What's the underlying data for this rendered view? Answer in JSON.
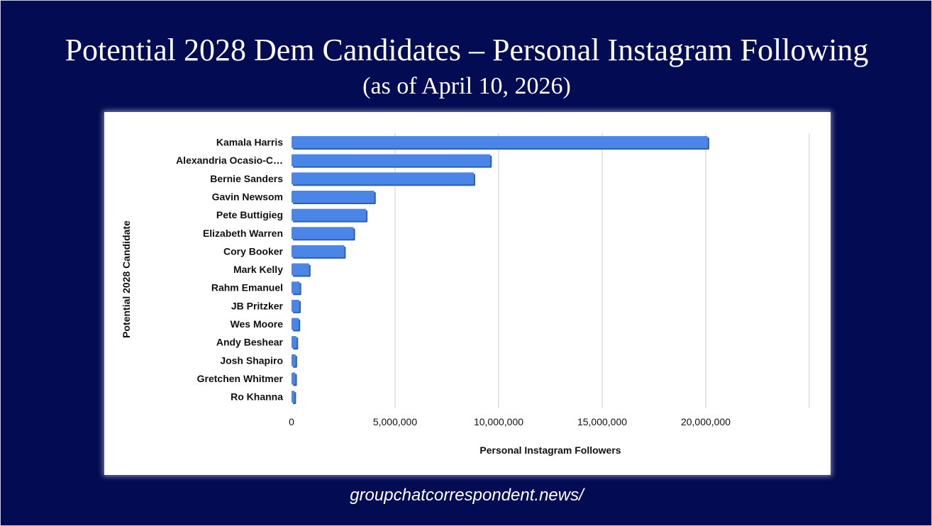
{
  "slide": {
    "title": "Potential 2028 Dem Candidates – Personal Instagram Following",
    "subtitle": "(as of April 10, 2026)",
    "footer": "groupchatcorrespondent.news/"
  },
  "colors": {
    "background": "#030b52",
    "bar": "#4a86e8",
    "bar_shadow": "#2f5fb3",
    "bar_side": "#5f95ea",
    "gridline": "#cccccc"
  },
  "chart_data": {
    "type": "bar",
    "orientation": "horizontal",
    "title": "",
    "xlabel": "Personal Instagram Followers",
    "ylabel": "Potential 2028 Candidate",
    "categories": [
      "Kamala Harris",
      "Alexandria Ocasio-C…",
      "Bernie Sanders",
      "Gavin Newsom",
      "Pete Buttigieg",
      "Elizabeth Warren",
      "Cory Booker",
      "Mark Kelly",
      "Rahm Emanuel",
      "JB Pritzker",
      "Wes Moore",
      "Andy Beshear",
      "Josh Shapiro",
      "Gretchen Whitmer",
      "Ro Khanna"
    ],
    "values": [
      20100000,
      9600000,
      8800000,
      4000000,
      3600000,
      3000000,
      2550000,
      850000,
      400000,
      380000,
      350000,
      250000,
      200000,
      190000,
      150000
    ],
    "xlim": [
      0,
      25000000
    ],
    "xticks": [
      0,
      5000000,
      10000000,
      15000000,
      20000000
    ],
    "xtick_labels": [
      "0",
      "5,000,000",
      "10,000,000",
      "15,000,000",
      "20,000,000"
    ],
    "grid": true,
    "legend": "none"
  }
}
